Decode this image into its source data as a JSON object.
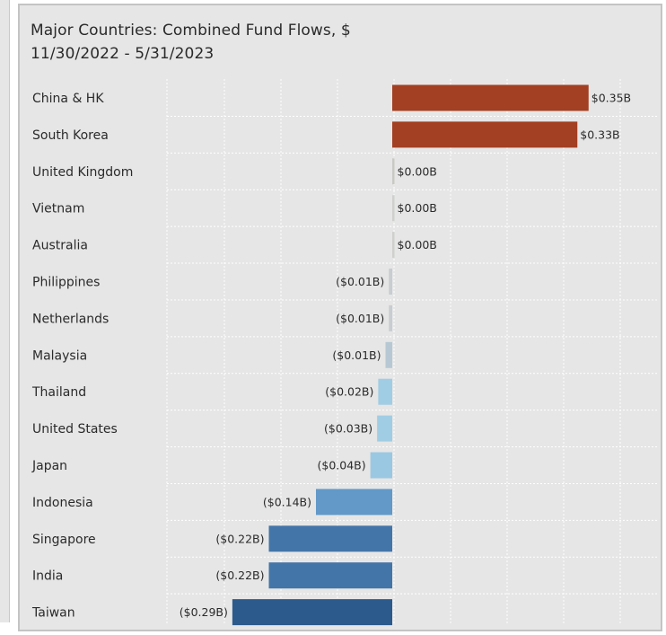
{
  "chart_data": {
    "type": "bar",
    "orientation": "horizontal",
    "title": "Major Countries:  Combined Fund Flows, $",
    "subtitle": "11/30/2022 - 5/31/2023",
    "xlabel": "",
    "ylabel": "",
    "unit": "$B",
    "grid": true,
    "legend": "none",
    "xlim": [
      -0.29,
      0.35
    ],
    "categories": [
      "China & HK",
      "South Korea",
      "United Kingdom",
      "Vietnam",
      "Australia",
      "Philippines",
      "Netherlands",
      "Malaysia",
      "Thailand",
      "United States",
      "Japan",
      "Indonesia",
      "Singapore",
      "India",
      "Taiwan"
    ],
    "values": [
      0.35,
      0.33,
      0.002,
      0.001,
      0.001,
      -0.006,
      -0.006,
      -0.012,
      -0.025,
      -0.027,
      -0.039,
      -0.136,
      -0.22,
      -0.22,
      -0.285
    ],
    "value_labels": [
      "$0.35B",
      "$0.33B",
      "$0.00B",
      "$0.00B",
      "$0.00B",
      "($0.01B)",
      "($0.01B)",
      "($0.01B)",
      "($0.02B)",
      "($0.03B)",
      "($0.04B)",
      "($0.14B)",
      "($0.22B)",
      "($0.22B)",
      "($0.29B)"
    ],
    "bar_colors": [
      "#a33f22",
      "#a33f22",
      "#c9c9c4",
      "#cfd1cd",
      "#cfd1cd",
      "#c7cdd0",
      "#c7cdd0",
      "#b7c8d4",
      "#a1cde4",
      "#a1cde4",
      "#9ac8e2",
      "#6299c8",
      "#4475a8",
      "#4475a8",
      "#2d5a8c"
    ]
  }
}
